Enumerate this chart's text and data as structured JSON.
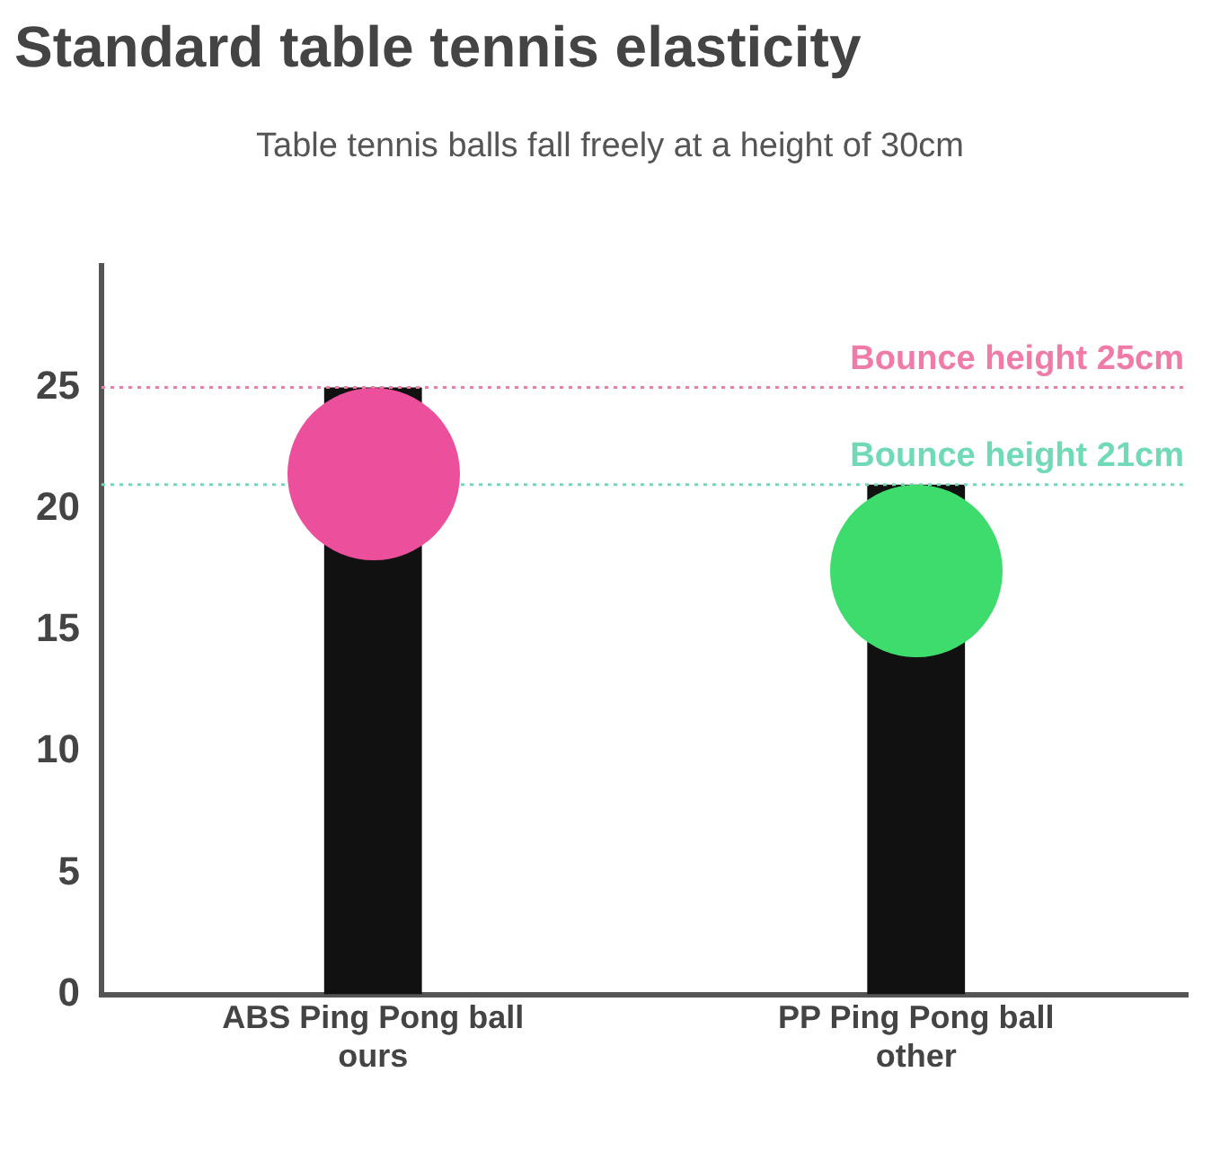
{
  "chart_data": {
    "type": "bar",
    "title": "Standard table tennis elasticity",
    "subtitle": "Table tennis balls fall freely at a height of 30cm",
    "categories": [
      "ABS Ping Pong ball\nours",
      "PP Ping Pong ball\nother"
    ],
    "values": [
      25,
      21
    ],
    "color": "#111111",
    "ylim": [
      0,
      30
    ],
    "yticks": [
      0,
      5,
      10,
      15,
      20,
      25
    ],
    "grid": false,
    "legend": false,
    "ref_lines": [
      {
        "axis": "y",
        "value": 25,
        "label": "Bounce height 25cm",
        "color": "#f07aa8",
        "line_style": "dotted"
      },
      {
        "axis": "y",
        "value": 21,
        "label": "Bounce height 21cm",
        "color": "#6fd9b8",
        "line_style": "dotted"
      }
    ]
  }
}
